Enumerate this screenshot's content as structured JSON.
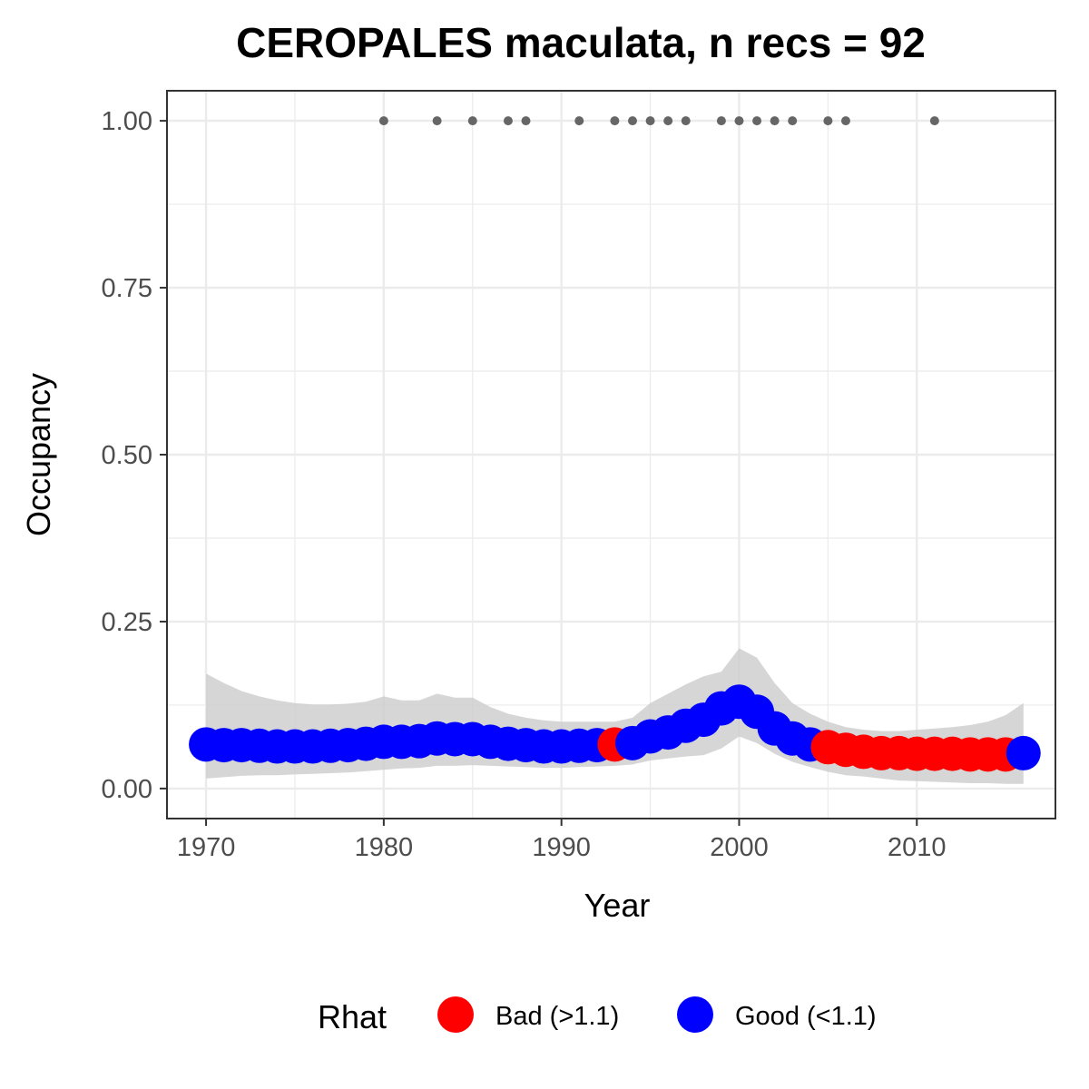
{
  "chart_data": {
    "type": "line",
    "title": "CEROPALES maculata, n recs = 92",
    "xlabel": "Year",
    "ylabel": "Occupancy",
    "xlim": [
      1967.8,
      2017.8
    ],
    "ylim": [
      -0.045,
      1.045
    ],
    "x_ticks": [
      1970,
      1980,
      1990,
      2000,
      2010
    ],
    "x_tick_labels": [
      "1970",
      "1980",
      "1990",
      "2000",
      "2010"
    ],
    "y_ticks": [
      0,
      0.25,
      0.5,
      0.75,
      1.0
    ],
    "y_tick_labels": [
      "0.00",
      "0.25",
      "0.50",
      "0.75",
      "1.00"
    ],
    "grid": true,
    "legend_position": "bottom",
    "legend": {
      "title": "Rhat",
      "entries": [
        {
          "label": "Bad (>1.1)",
          "color": "#ff0000"
        },
        {
          "label": "Good (<1.1)",
          "color": "#0000ff"
        }
      ]
    },
    "colors": {
      "bad": "#ff0000",
      "good": "#0000ff",
      "ribbon": "#cccccc",
      "records": "#666666",
      "grid": "#ebebeb",
      "panel_border": "#333333"
    },
    "series": [
      {
        "name": "Occupancy",
        "x": [
          1970,
          1971,
          1972,
          1973,
          1974,
          1975,
          1976,
          1977,
          1978,
          1979,
          1980,
          1981,
          1982,
          1983,
          1984,
          1985,
          1986,
          1987,
          1988,
          1989,
          1990,
          1991,
          1992,
          1993,
          1994,
          1995,
          1996,
          1997,
          1998,
          1999,
          2000,
          2001,
          2002,
          2003,
          2004,
          2005,
          2006,
          2007,
          2008,
          2009,
          2010,
          2011,
          2012,
          2013,
          2014,
          2015,
          2016
        ],
        "y": [
          0.066,
          0.065,
          0.065,
          0.064,
          0.063,
          0.063,
          0.063,
          0.064,
          0.065,
          0.067,
          0.07,
          0.07,
          0.071,
          0.075,
          0.074,
          0.074,
          0.07,
          0.067,
          0.065,
          0.063,
          0.063,
          0.064,
          0.065,
          0.066,
          0.068,
          0.078,
          0.084,
          0.094,
          0.103,
          0.12,
          0.13,
          0.115,
          0.09,
          0.075,
          0.066,
          0.062,
          0.058,
          0.055,
          0.053,
          0.053,
          0.052,
          0.052,
          0.052,
          0.051,
          0.051,
          0.051,
          0.053
        ],
        "lower": [
          0.015,
          0.017,
          0.019,
          0.02,
          0.02,
          0.021,
          0.022,
          0.023,
          0.024,
          0.026,
          0.028,
          0.03,
          0.031,
          0.034,
          0.034,
          0.035,
          0.034,
          0.033,
          0.032,
          0.031,
          0.031,
          0.032,
          0.033,
          0.034,
          0.036,
          0.042,
          0.045,
          0.048,
          0.05,
          0.06,
          0.078,
          0.068,
          0.052,
          0.04,
          0.032,
          0.025,
          0.02,
          0.018,
          0.015,
          0.012,
          0.011,
          0.01,
          0.009,
          0.008,
          0.008,
          0.007,
          0.007
        ],
        "upper": [
          0.172,
          0.158,
          0.146,
          0.138,
          0.132,
          0.128,
          0.126,
          0.126,
          0.127,
          0.13,
          0.138,
          0.132,
          0.132,
          0.142,
          0.136,
          0.136,
          0.122,
          0.112,
          0.106,
          0.102,
          0.1,
          0.1,
          0.1,
          0.1,
          0.106,
          0.128,
          0.142,
          0.156,
          0.168,
          0.175,
          0.21,
          0.196,
          0.158,
          0.128,
          0.112,
          0.1,
          0.092,
          0.088,
          0.086,
          0.086,
          0.088,
          0.09,
          0.092,
          0.095,
          0.1,
          0.11,
          0.128
        ],
        "rhat": [
          "good",
          "good",
          "good",
          "good",
          "good",
          "good",
          "good",
          "good",
          "good",
          "good",
          "good",
          "good",
          "good",
          "good",
          "good",
          "good",
          "good",
          "good",
          "good",
          "good",
          "good",
          "good",
          "good",
          "bad",
          "good",
          "good",
          "good",
          "good",
          "good",
          "good",
          "good",
          "good",
          "good",
          "good",
          "good",
          "bad",
          "bad",
          "bad",
          "bad",
          "bad",
          "bad",
          "bad",
          "bad",
          "bad",
          "bad",
          "bad",
          "good"
        ]
      }
    ],
    "record_years": [
      1980,
      1983,
      1985,
      1987,
      1988,
      1991,
      1993,
      1994,
      1995,
      1996,
      1997,
      1999,
      2000,
      2001,
      2002,
      2003,
      2005,
      2006,
      2011
    ],
    "record_value": 1.0
  }
}
